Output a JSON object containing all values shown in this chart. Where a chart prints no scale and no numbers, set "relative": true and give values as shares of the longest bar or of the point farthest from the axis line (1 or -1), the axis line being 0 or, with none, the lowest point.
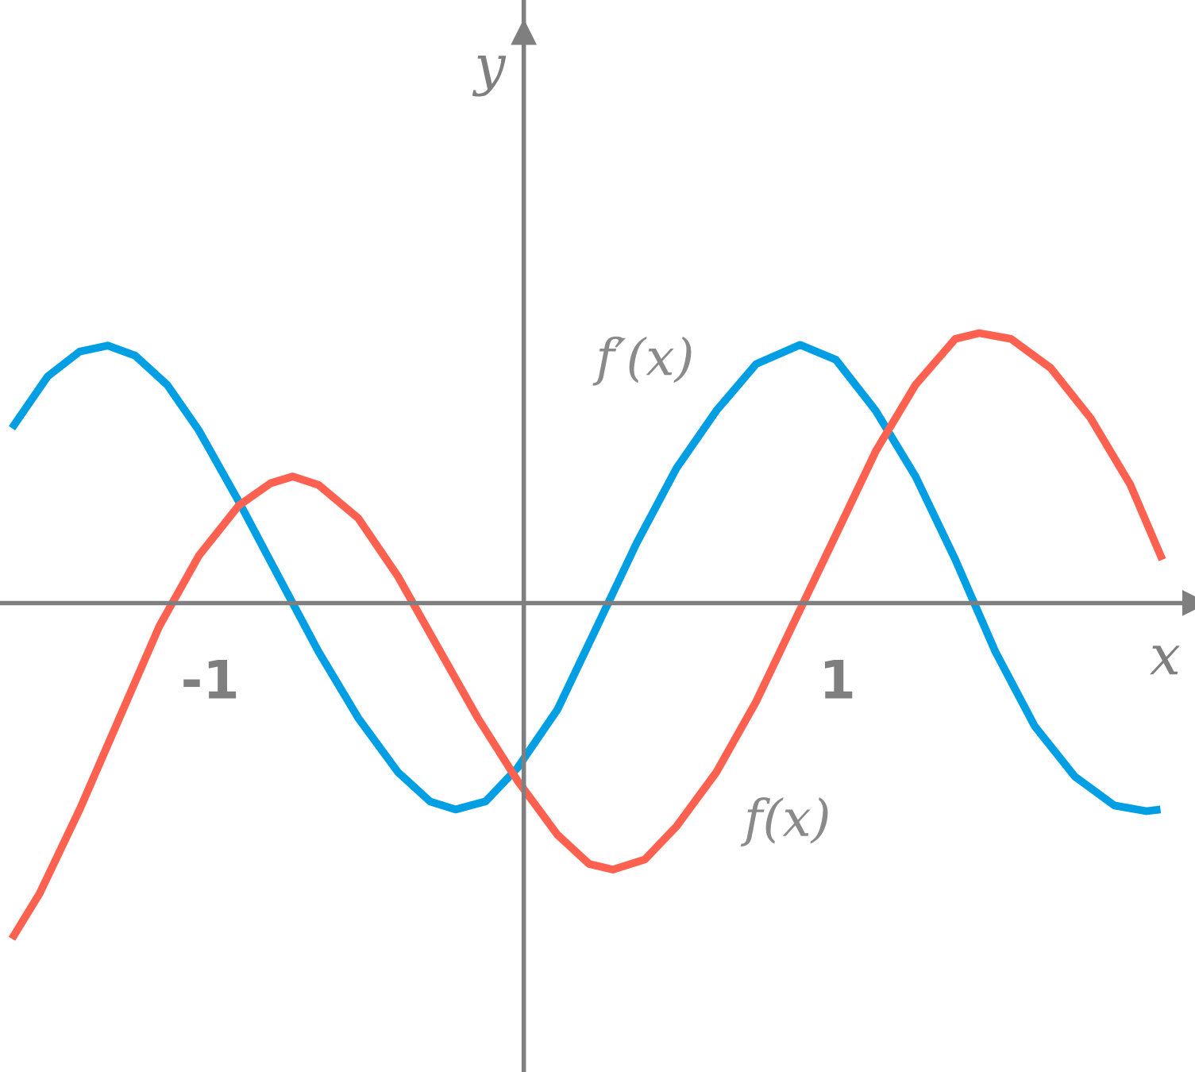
{
  "chart_data": {
    "type": "line",
    "relative": true,
    "xlabel": "x",
    "ylabel": "y",
    "xlim": [
      -1.67,
      2.14
    ],
    "xticks": [
      -1,
      1
    ],
    "grid": false,
    "legend": false,
    "series": [
      {
        "name": "f′(x)",
        "color": "#009fe3",
        "x": [
          -1.632,
          -1.518,
          -1.416,
          -1.327,
          -1.239,
          -1.137,
          -1.036,
          -0.909,
          -0.782,
          -0.655,
          -0.528,
          -0.401,
          -0.299,
          -0.218,
          -0.122,
          -0.02,
          0.107,
          0.234,
          0.36,
          0.487,
          0.614,
          0.741,
          0.881,
          0.995,
          1.122,
          1.249,
          1.376,
          1.503,
          1.629,
          1.756,
          1.883,
          1.985,
          2.03
        ],
        "values": [
          0.521,
          0.675,
          0.749,
          0.767,
          0.737,
          0.65,
          0.514,
          0.303,
          0.079,
          -0.144,
          -0.342,
          -0.504,
          -0.591,
          -0.615,
          -0.591,
          -0.491,
          -0.318,
          -0.069,
          0.179,
          0.402,
          0.573,
          0.712,
          0.769,
          0.725,
          0.573,
          0.377,
          0.129,
          -0.144,
          -0.367,
          -0.516,
          -0.603,
          -0.62,
          -0.615
        ]
      },
      {
        "name": "f(x)",
        "color": "#ff6150",
        "x": [
          -1.632,
          -1.543,
          -1.416,
          -1.289,
          -1.162,
          -1.036,
          -0.909,
          -0.807,
          -0.736,
          -0.655,
          -0.528,
          -0.401,
          -0.274,
          -0.147,
          -0.02,
          0.107,
          0.208,
          0.284,
          0.386,
          0.487,
          0.614,
          0.741,
          0.868,
          0.995,
          1.122,
          1.249,
          1.376,
          1.452,
          1.553,
          1.68,
          1.807,
          1.934,
          2.036
        ],
        "values": [
          -1,
          -0.864,
          -0.615,
          -0.342,
          -0.069,
          0.141,
          0.29,
          0.357,
          0.377,
          0.352,
          0.253,
          0.079,
          -0.132,
          -0.342,
          -0.529,
          -0.69,
          -0.777,
          -0.794,
          -0.764,
          -0.665,
          -0.504,
          -0.293,
          -0.045,
          0.203,
          0.452,
          0.65,
          0.787,
          0.804,
          0.787,
          0.7,
          0.551,
          0.352,
          0.129
        ]
      }
    ]
  }
}
